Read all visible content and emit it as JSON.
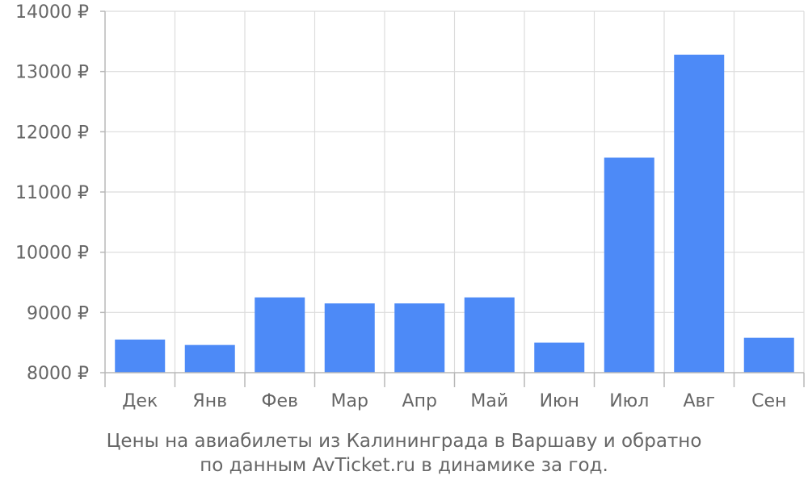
{
  "chart_data": {
    "type": "bar",
    "categories": [
      "Дек",
      "Янв",
      "Фев",
      "Мар",
      "Апр",
      "Май",
      "Июн",
      "Июл",
      "Авг",
      "Сен"
    ],
    "values": [
      8550,
      8460,
      9250,
      9150,
      9150,
      9250,
      8500,
      11570,
      13280,
      8580
    ],
    "ylim": [
      8000,
      14000
    ],
    "yticks": [
      8000,
      9000,
      10000,
      11000,
      12000,
      13000,
      14000
    ],
    "ytick_labels": [
      "8000 ₽",
      "9000 ₽",
      "10000 ₽",
      "11000 ₽",
      "12000 ₽",
      "13000 ₽",
      "14000 ₽"
    ],
    "bar_color": "#4d8af7",
    "grid": true,
    "legend": "none"
  },
  "caption": {
    "line1": "Цены на авиабилеты из Калининграда в Варшаву и обратно",
    "line2": "по данным AvTicket.ru в динамике за год."
  }
}
